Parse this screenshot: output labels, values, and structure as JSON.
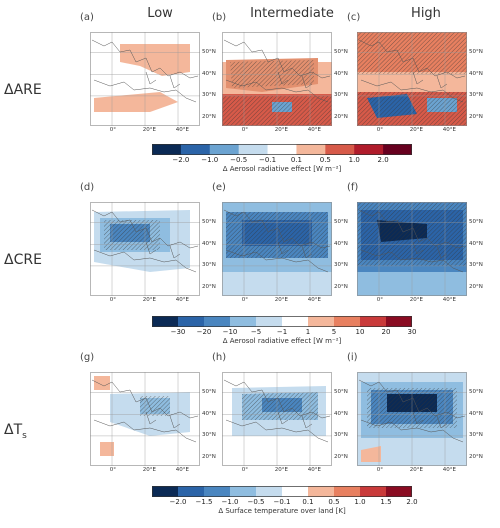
{
  "columns": [
    "Low",
    "Intermediate",
    "High"
  ],
  "rows": [
    {
      "label": "ΔARE",
      "letters": [
        "(a)",
        "(b)",
        "(c)"
      ]
    },
    {
      "label": "ΔCRE",
      "letters": [
        "(d)",
        "(e)",
        "(f)"
      ]
    },
    {
      "label": "ΔT",
      "sub": "s",
      "letters": [
        "(g)",
        "(h)",
        "(i)"
      ]
    }
  ],
  "lat_labels": [
    "50°N",
    "40°N",
    "30°N",
    "20°N"
  ],
  "lon_labels": [
    "0°",
    "20°E",
    "40°E"
  ],
  "colorbars": [
    {
      "ticks": [
        "−2.0",
        "−1.0",
        "−0.5",
        "−0.1",
        "0.1",
        "0.5",
        "1.0",
        "2.0"
      ],
      "title": "Δ Aerosol radiative effect [W m⁻²]",
      "colors": [
        "#0b2a55",
        "#2b64a8",
        "#6ba3d1",
        "#c5dcee",
        "#ffffff",
        "#f4b79b",
        "#d75a49",
        "#b01c2b",
        "#67001f"
      ]
    },
    {
      "ticks": [
        "−30",
        "−20",
        "−10",
        "−5",
        "−1",
        "1",
        "5",
        "10",
        "20",
        "30"
      ],
      "title": "Δ Aerosol radiative effect [W m⁻²]",
      "colors": [
        "#0b2a55",
        "#2b64a8",
        "#4a86c0",
        "#8fbde0",
        "#c5dcee",
        "#ffffff",
        "#f4b79b",
        "#e88060",
        "#c93a3a",
        "#8a0c22"
      ]
    },
    {
      "ticks": [
        "−2.0",
        "−1.5",
        "−1.0",
        "−0.5",
        "−0.1",
        "0.1",
        "0.5",
        "1.0",
        "1.5",
        "2.0"
      ],
      "title": "Δ Surface temperature over land [K]",
      "colors": [
        "#0b2a55",
        "#2b64a8",
        "#4a86c0",
        "#8fbde0",
        "#c5dcee",
        "#ffffff",
        "#f4b79b",
        "#e88060",
        "#c93a3a",
        "#8a0c22"
      ]
    }
  ]
}
